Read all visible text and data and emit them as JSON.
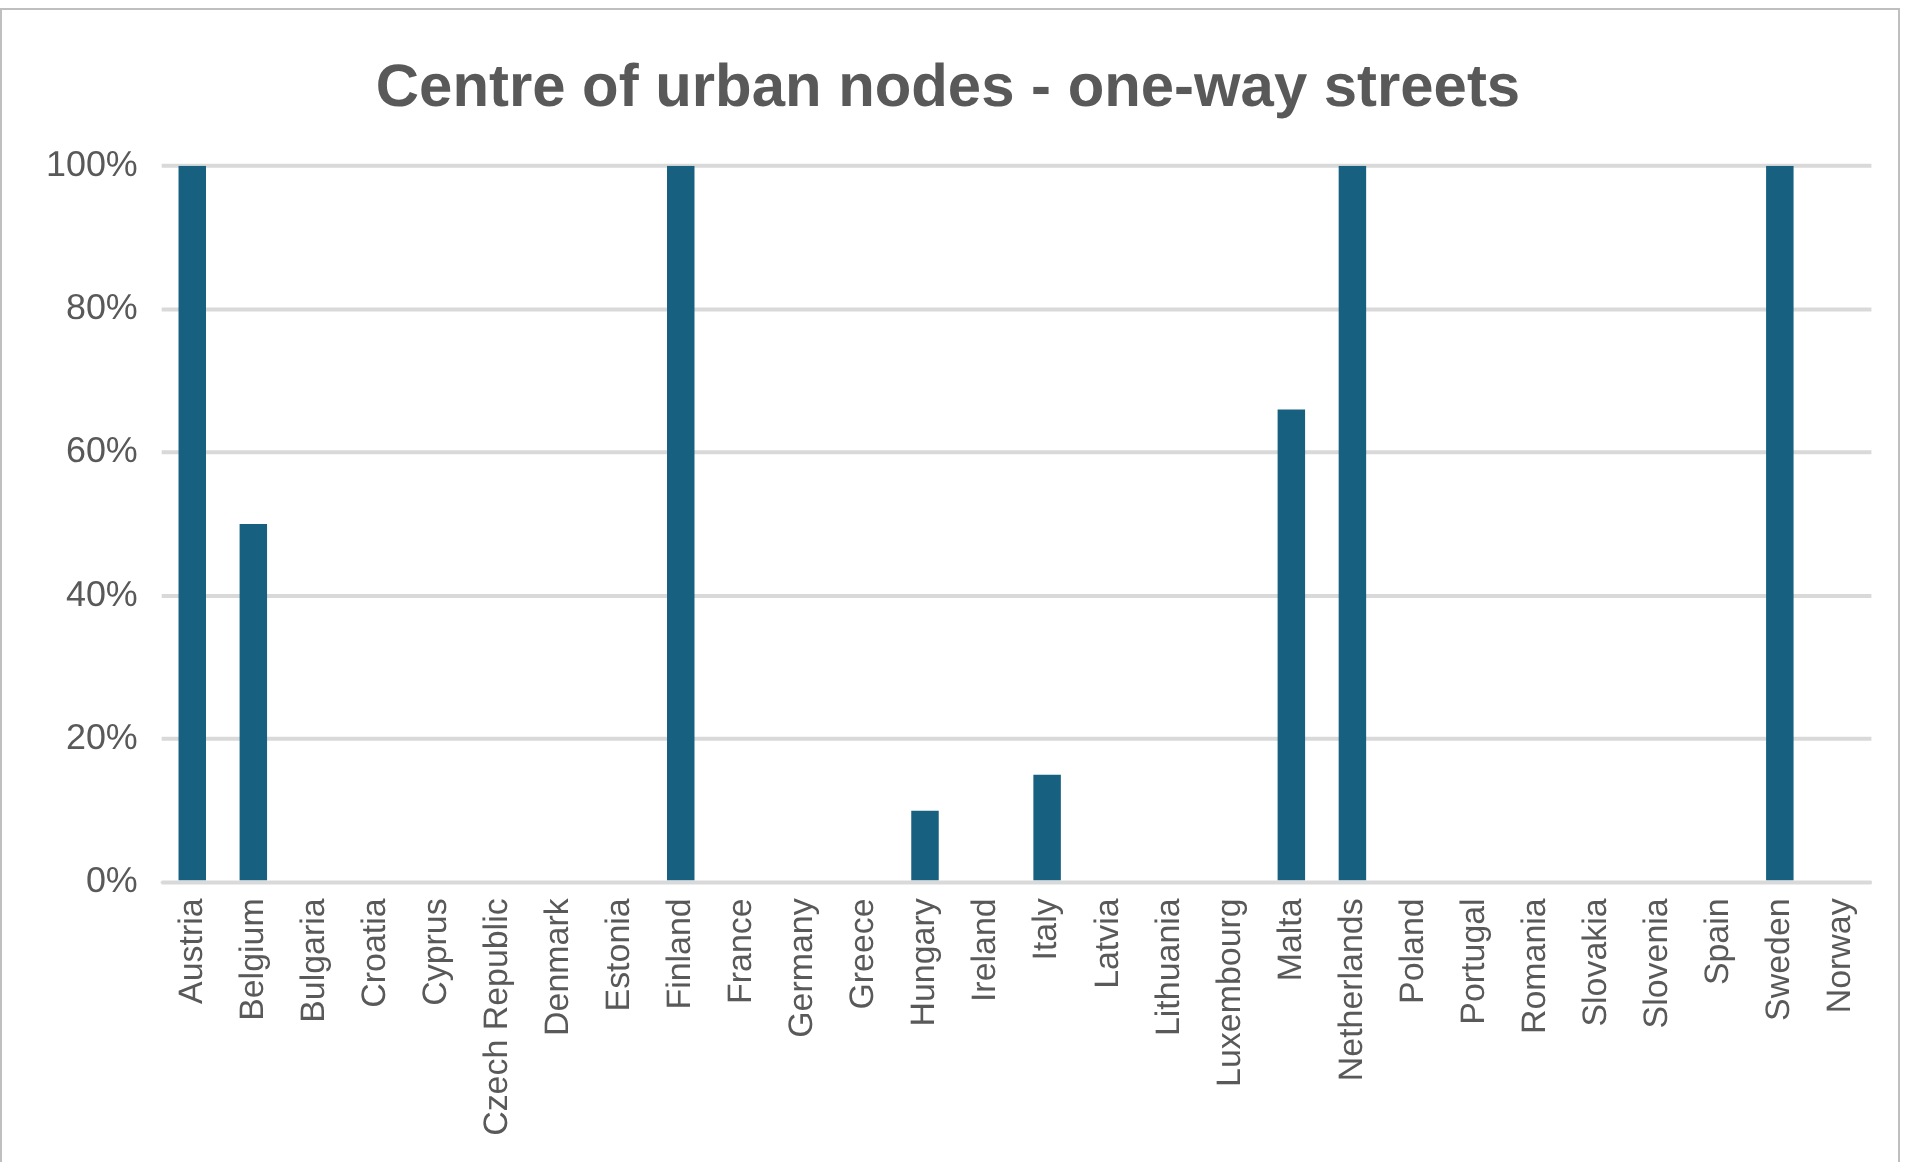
{
  "chart_data": {
    "type": "bar",
    "title": "Centre of urban nodes - one-way streets",
    "categories": [
      "Austria",
      "Belgium",
      "Bulgaria",
      "Croatia",
      "Cyprus",
      "Czech Republic",
      "Denmark",
      "Estonia",
      "Finland",
      "France",
      "Germany",
      "Greece",
      "Hungary",
      "Ireland",
      "Italy",
      "Latvia",
      "Lithuania",
      "Luxembourg",
      "Malta",
      "Netherlands",
      "Poland",
      "Portugal",
      "Romania",
      "Slovakia",
      "Slovenia",
      "Spain",
      "Sweden",
      "Norway"
    ],
    "values": [
      100,
      50,
      0,
      0,
      0,
      0,
      0,
      0,
      100,
      0,
      0,
      0,
      10,
      0,
      15,
      0,
      0,
      0,
      66,
      100,
      0,
      0,
      0,
      0,
      0,
      0,
      100,
      0
    ],
    "color": "#17607f",
    "ylim": [
      0,
      100
    ],
    "yticks": [
      {
        "value": 0,
        "label": "0%"
      },
      {
        "value": 20,
        "label": "20%"
      },
      {
        "value": 40,
        "label": "40%"
      },
      {
        "value": 60,
        "label": "60%"
      },
      {
        "value": 80,
        "label": "80%"
      },
      {
        "value": 100,
        "label": "100%"
      }
    ],
    "grid": "y",
    "legend": false
  }
}
